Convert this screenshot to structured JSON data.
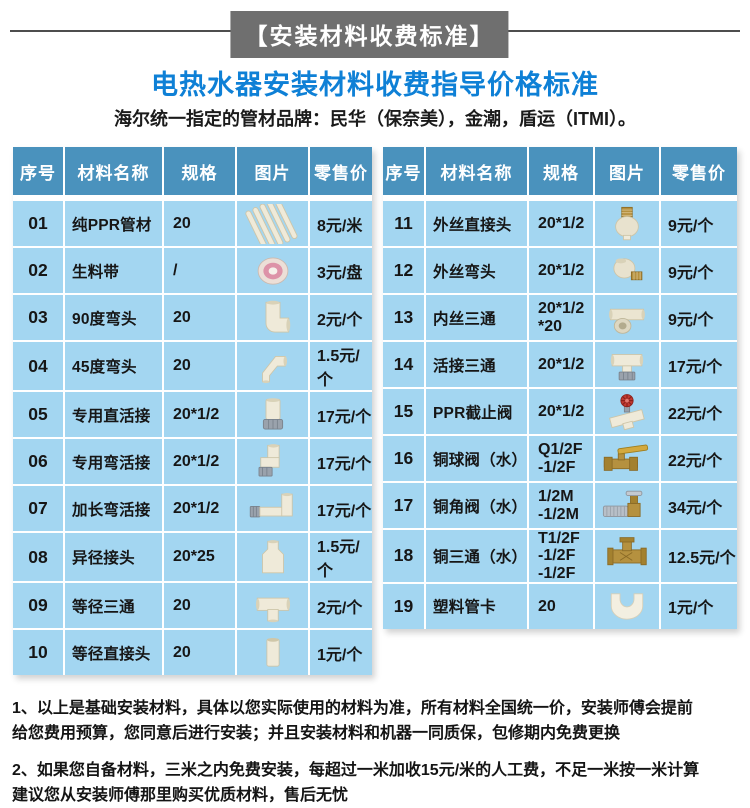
{
  "colors": {
    "badge_bg": "#6f6f6f",
    "line": "#4e4e4e",
    "title_color": "#0e80d6",
    "header_bg": "#4a92bd",
    "row_bg": "#a3d6f1"
  },
  "header": {
    "badge": "【安装材料收费标准】",
    "title": "电热水器安装材料收费指导价格标准",
    "subtitle": "海尔统一指定的管材品牌：民华（保奈美），金潮，盾运（ITMI）。"
  },
  "tables": [
    {
      "columns": [
        "序号",
        "材料名称",
        "规格",
        "图片",
        "零售价"
      ],
      "rows": [
        {
          "seq": "01",
          "name": "纯PPR管材",
          "spec": "20",
          "photo": "pipes",
          "price": "8元/米"
        },
        {
          "seq": "02",
          "name": "生料带",
          "spec": "/",
          "photo": "tape",
          "price": "3元/盘"
        },
        {
          "seq": "03",
          "name": "90度弯头",
          "spec": "20",
          "photo": "elbow90",
          "price": "2元/个"
        },
        {
          "seq": "04",
          "name": "45度弯头",
          "spec": "20",
          "photo": "elbow45",
          "price": "1.5元/个"
        },
        {
          "seq": "05",
          "name": "专用直活接",
          "spec": "20*1/2",
          "photo": "union-straight",
          "price": "17元/个"
        },
        {
          "seq": "06",
          "name": "专用弯活接",
          "spec": "20*1/2",
          "photo": "union-elbow",
          "price": "17元/个"
        },
        {
          "seq": "07",
          "name": "加长弯活接",
          "spec": "20*1/2",
          "photo": "union-elbow-long",
          "price": "17元/个"
        },
        {
          "seq": "08",
          "name": "异径接头",
          "spec": "20*25",
          "photo": "reducer",
          "price": "1.5元/个"
        },
        {
          "seq": "09",
          "name": "等径三通",
          "spec": "20",
          "photo": "tee",
          "price": "2元/个"
        },
        {
          "seq": "10",
          "name": "等径直接头",
          "spec": "20",
          "photo": "coupler",
          "price": "1元/个"
        }
      ]
    },
    {
      "columns": [
        "序号",
        "材料名称",
        "规格",
        "图片",
        "零售价"
      ],
      "rows": [
        {
          "seq": "11",
          "name": "外丝直接头",
          "spec": "20*1/2",
          "photo": "male-adapter",
          "price": "9元/个"
        },
        {
          "seq": "12",
          "name": "外丝弯头",
          "spec": "20*1/2",
          "photo": "male-elbow",
          "price": "9元/个"
        },
        {
          "seq": "13",
          "name": "内丝三通",
          "spec": "20*1/2\n*20",
          "photo": "female-tee",
          "price": "9元/个"
        },
        {
          "seq": "14",
          "name": "活接三通",
          "spec": "20*1/2",
          "photo": "union-tee",
          "price": "17元/个"
        },
        {
          "seq": "15",
          "name": "PPR截止阀",
          "spec": "20*1/2",
          "photo": "stop-valve",
          "price": "22元/个"
        },
        {
          "seq": "16",
          "name": "铜球阀（水）",
          "spec": "Q1/2F\n-1/2F",
          "photo": "ball-valve",
          "price": "22元/个"
        },
        {
          "seq": "17",
          "name": "铜角阀（水）",
          "spec": "1/2M\n-1/2M",
          "photo": "angle-valve",
          "price": "34元/个"
        },
        {
          "seq": "18",
          "name": "铜三通（水）",
          "spec": "T1/2F\n-1/2F\n-1/2F",
          "photo": "brass-tee",
          "price": "12.5元/个"
        },
        {
          "seq": "19",
          "name": "塑料管卡",
          "spec": "20",
          "photo": "pipe-clamp",
          "price": "1元/个"
        }
      ]
    }
  ],
  "notes": [
    [
      "1、以上是基础安装材料，具体以您实际使用的材料为准，所有材料全国统一价，安装师傅会提前",
      "给您费用预算，您同意后进行安装；并且安装材料和机器一同质保，包修期内免费更换"
    ],
    [
      "2、如果您自备材料，三米之内免费安装，每超过一米加收15元/米的人工费，不足一米按一米计算",
      "建议您从安装师傅那里购买优质材料，售后无忧"
    ]
  ]
}
